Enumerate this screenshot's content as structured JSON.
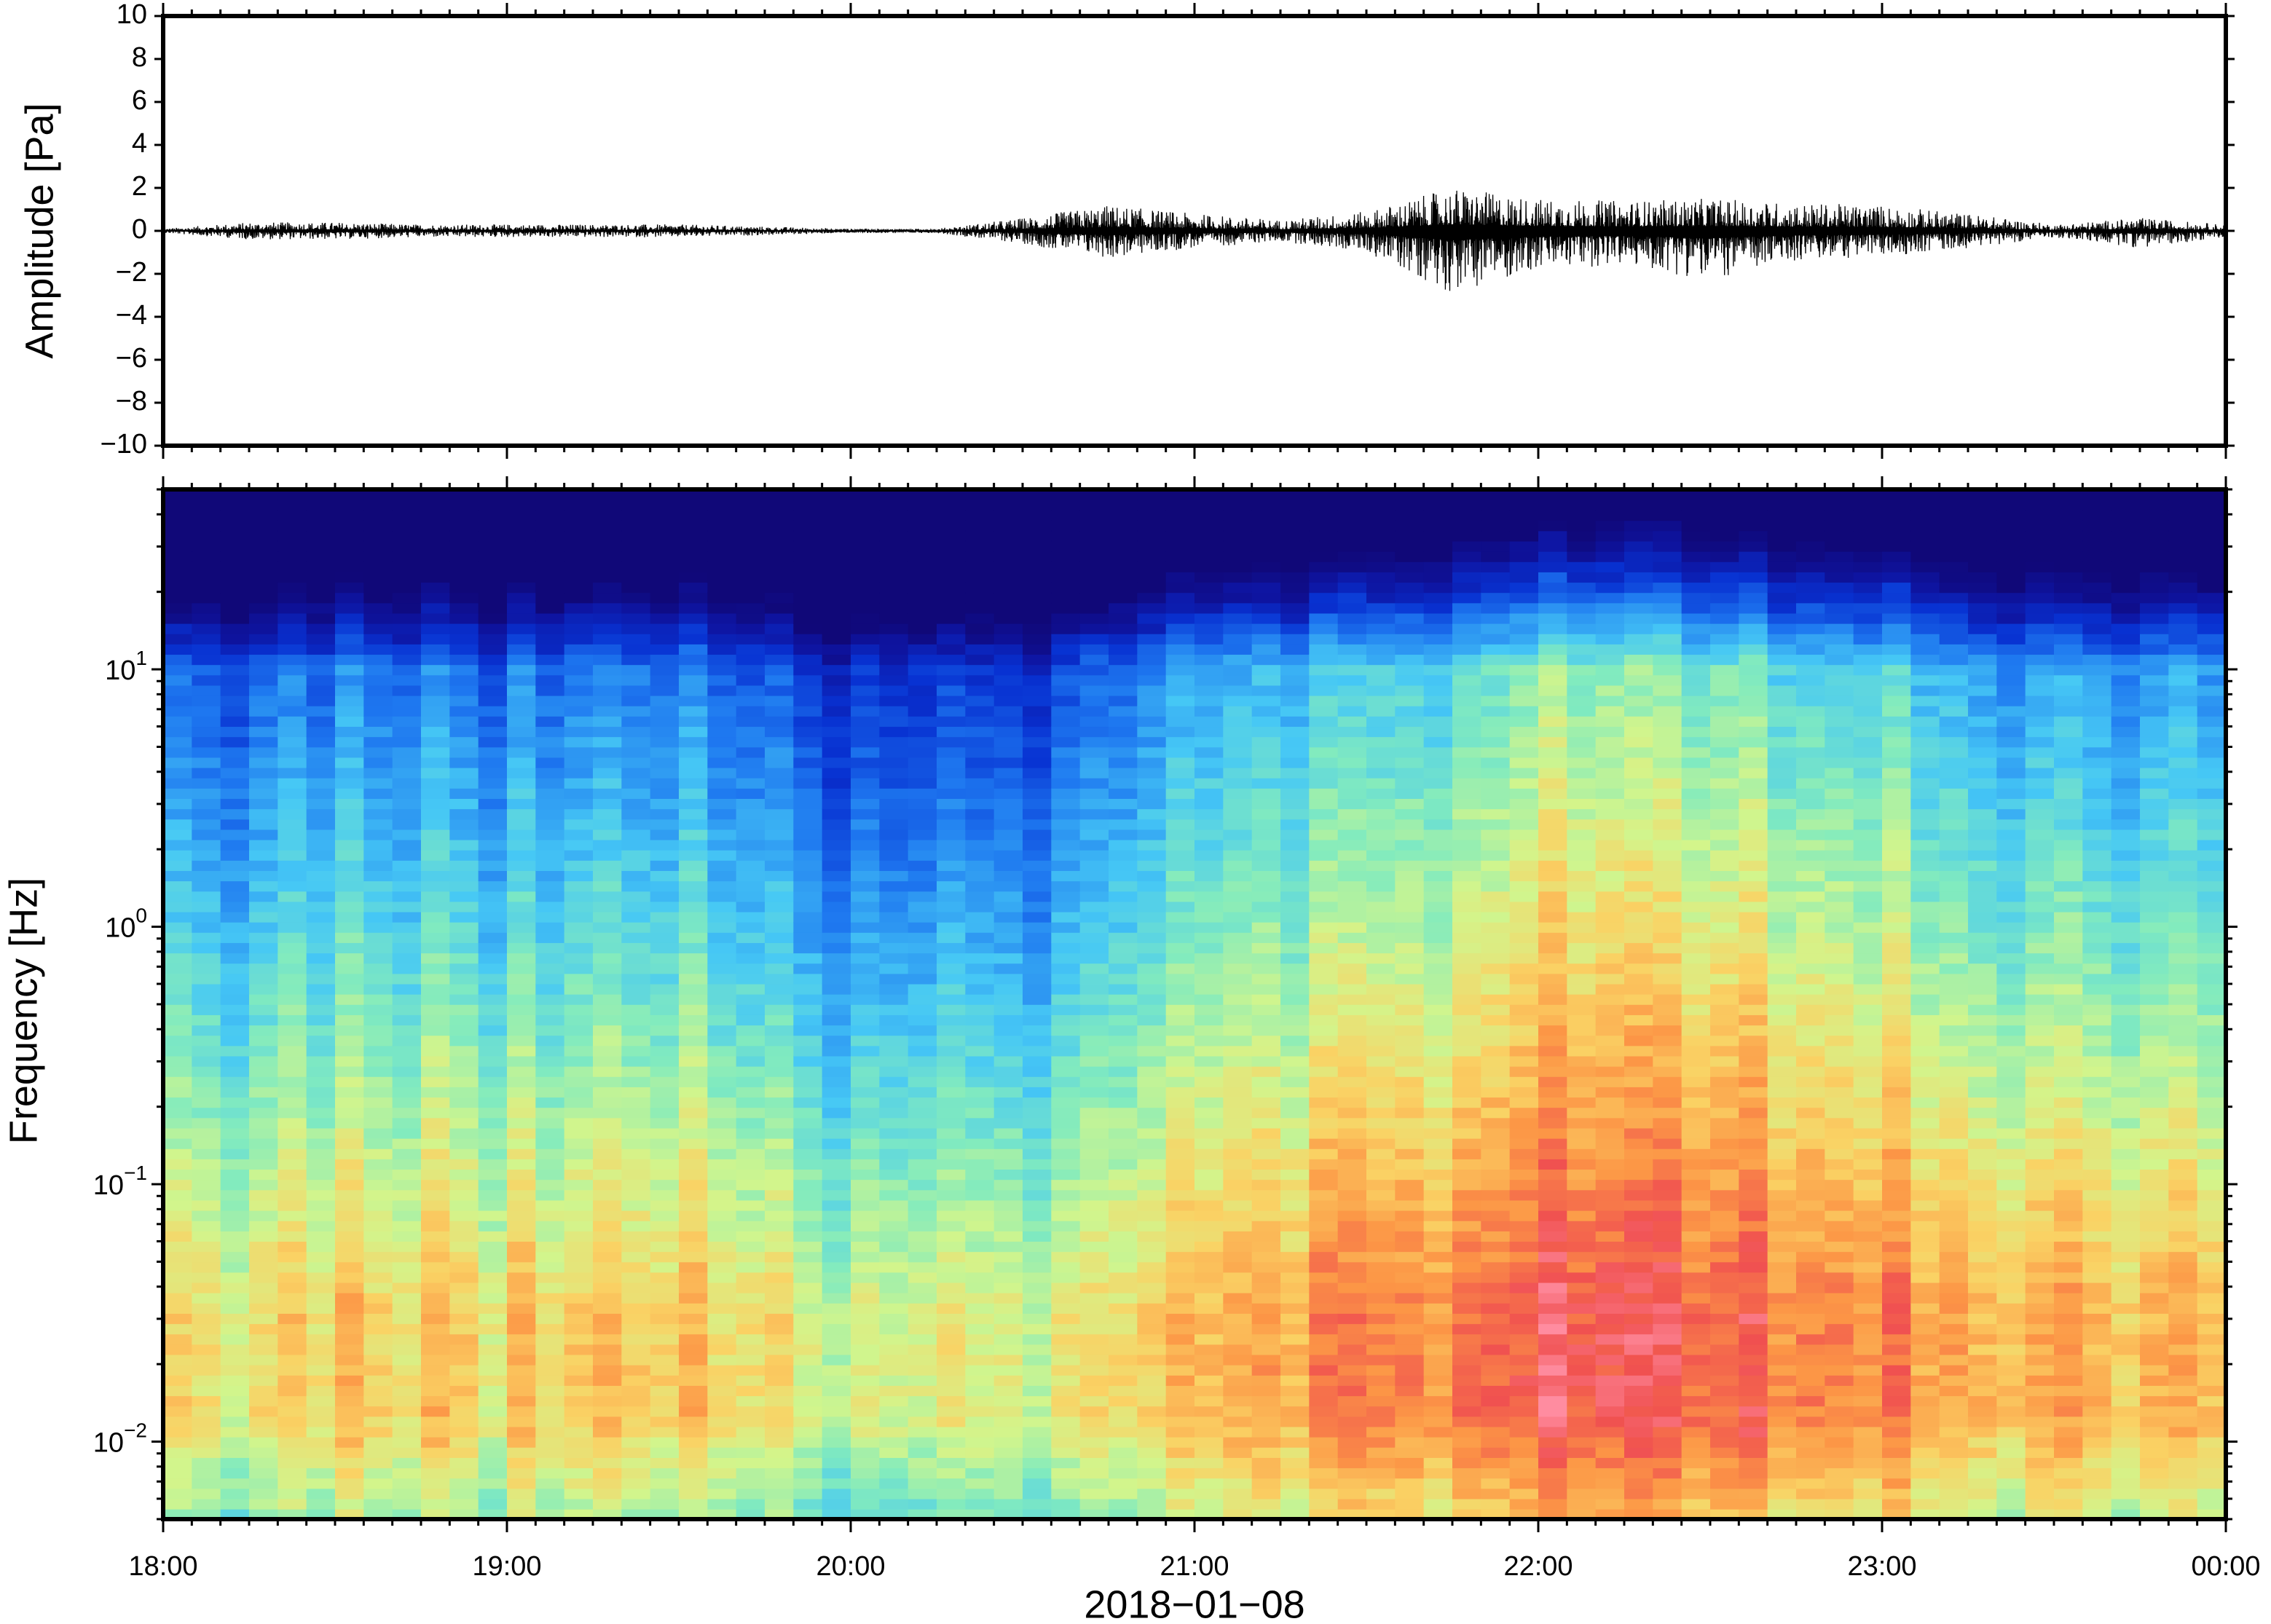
{
  "chart_data": [
    {
      "type": "line",
      "panel": "waveform",
      "ylabel": "Amplitude [Pa]",
      "ylim": [
        -10,
        10
      ],
      "yticks": [
        10,
        8,
        6,
        4,
        2,
        0,
        -2,
        -4,
        -6,
        -8,
        -10
      ],
      "ytick_labels": [
        "10",
        "8",
        "6",
        "4",
        "2",
        "0",
        "−2",
        "−4",
        "−6",
        "−8",
        "−10"
      ],
      "x_range_hours": [
        18,
        24
      ],
      "envelope": {
        "x": [
          "18:00",
          "18:15",
          "18:30",
          "18:45",
          "19:00",
          "19:15",
          "19:30",
          "19:45",
          "20:00",
          "20:15",
          "20:30",
          "20:45",
          "21:00",
          "21:15",
          "21:30",
          "21:45",
          "22:00",
          "22:15",
          "22:30",
          "22:45",
          "23:00",
          "23:15",
          "23:30",
          "23:45",
          "00:00"
        ],
        "max": [
          0.1,
          0.4,
          0.4,
          0.3,
          0.3,
          0.3,
          0.3,
          0.2,
          0.1,
          0.1,
          0.6,
          1.2,
          0.8,
          0.5,
          0.9,
          2.0,
          1.5,
          1.4,
          1.5,
          1.3,
          1.2,
          0.8,
          0.3,
          0.6,
          0.3
        ],
        "min": [
          -0.1,
          -0.4,
          -0.4,
          -0.3,
          -0.3,
          -0.3,
          -0.3,
          -0.2,
          -0.1,
          -0.1,
          -0.6,
          -1.3,
          -0.8,
          -0.5,
          -1.0,
          -2.9,
          -1.8,
          -1.6,
          -2.3,
          -1.4,
          -1.2,
          -0.8,
          -0.3,
          -0.8,
          -0.3
        ]
      }
    },
    {
      "type": "heatmap",
      "panel": "spectrogram",
      "ylabel": "Frequency [Hz]",
      "yscale": "log",
      "ylim": [
        0.005,
        50
      ],
      "ytick_values": [
        0.01,
        0.1,
        1,
        10
      ],
      "ytick_labels": [
        {
          "base": "10",
          "exp": "−2"
        },
        {
          "base": "10",
          "exp": "−1"
        },
        {
          "base": "10",
          "exp": "0"
        },
        {
          "base": "10",
          "exp": "1"
        }
      ],
      "x_range_hours": [
        18,
        24
      ],
      "colormap": "rainbow (dark blue = low power, pink/red = high power)",
      "relative_level": {
        "x": [
          "18:00",
          "18:30",
          "19:00",
          "19:30",
          "20:00",
          "20:30",
          "21:00",
          "21:30",
          "22:00",
          "22:30",
          "23:00",
          "23:30",
          "00:00"
        ],
        "values": [
          0.35,
          0.45,
          0.42,
          0.45,
          0.2,
          0.25,
          0.65,
          0.6,
          0.85,
          0.82,
          0.7,
          0.5,
          0.6
        ]
      },
      "xlabel": "2018−01−08",
      "xtick_labels": [
        "18:00",
        "19:00",
        "20:00",
        "21:00",
        "22:00",
        "23:00",
        "00:00"
      ]
    }
  ]
}
